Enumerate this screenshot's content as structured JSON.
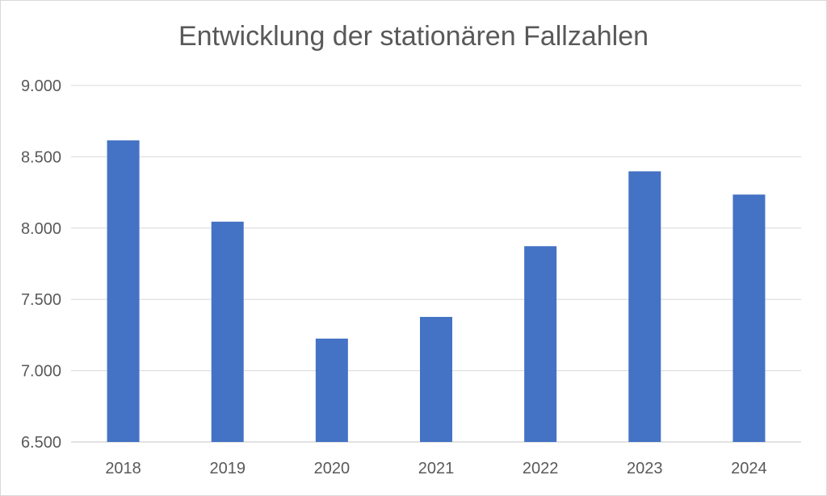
{
  "chart_data": {
    "type": "bar",
    "title": "Entwicklung der stationären Fallzahlen",
    "xlabel": "",
    "ylabel": "",
    "categories": [
      "2018",
      "2019",
      "2020",
      "2021",
      "2022",
      "2023",
      "2024"
    ],
    "values": [
      8615,
      8045,
      7225,
      7377,
      7873,
      8398,
      8235
    ],
    "ylim": [
      6500,
      9000
    ],
    "yticks": [
      6500,
      7000,
      7500,
      8000,
      8500,
      9000
    ],
    "ytick_labels": [
      "6.500",
      "7.000",
      "7.500",
      "8.000",
      "8.500",
      "9.000"
    ],
    "grid": true,
    "legend": "none",
    "bar_color": "#4472c4",
    "grid_color": "#d9d9d9",
    "text_color": "#595959"
  }
}
